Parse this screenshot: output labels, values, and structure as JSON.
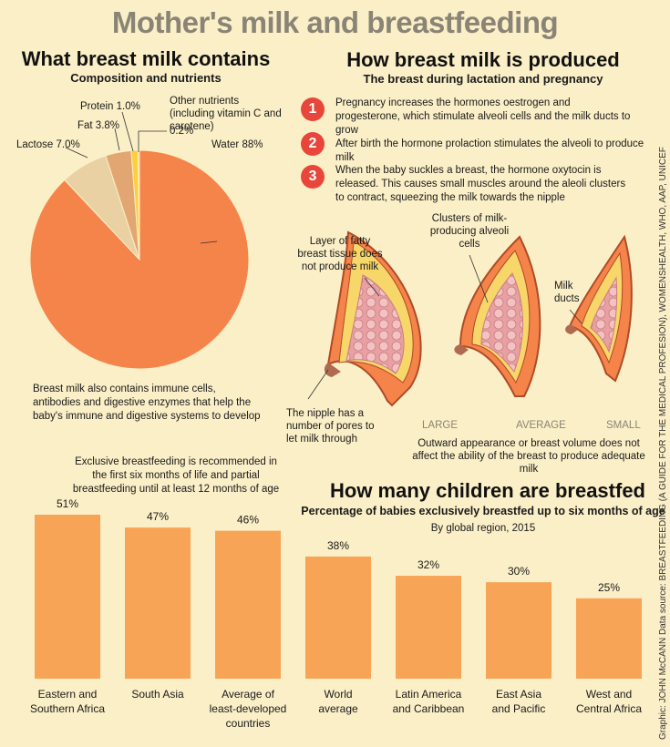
{
  "title": "Mother's milk and breastfeeding",
  "composition": {
    "title": "What breast milk contains",
    "subtitle": "Composition and nutrients",
    "note": "Breast milk also contains immune cells, antibodies and digestive enzymes that help the baby's immune and digestive systems to develop",
    "labels": {
      "water": "Water 88%",
      "lactose": "Lactose 7.0%",
      "fat": "Fat 3.8%",
      "protein": "Protein 1.0%",
      "other": "Other nutrients (including vitamin C and carotene)",
      "other_pct": "0.2%"
    }
  },
  "production": {
    "title": "How breast milk is produced",
    "subtitle": "The breast during lactation and pregnancy",
    "steps": [
      {
        "num": "1",
        "text": "Pregnancy increases the hormones oestrogen and progesterone, which stimulate alveoli cells and the milk ducts  to grow"
      },
      {
        "num": "2",
        "text": "After birth the hormone prolaction stimulates the alveoli to produce milk"
      },
      {
        "num": "3",
        "text": "When the baby suckles a breast, the hormone oxytocin is released. This causes small muscles around the aleoli clusters to contract, squeezing the milk towards the nipple"
      }
    ],
    "labels": {
      "fatty": "Layer of fatty breast tissue does not produce milk",
      "clusters": "Clusters of milk-producing alveoli cells",
      "ducts": "Milk ducts",
      "nipple": "The nipple has a number of pores to let milk through",
      "large": "LARGE",
      "average": "AVERAGE",
      "small": "SMALL",
      "volume_note": "Outward appearance or breast volume does not affect the ability of the breast to produce adequate milk"
    }
  },
  "breastfed": {
    "title": "How many children are breastfed",
    "subtitle": "Percentage of babies exclusively breastfed up to six months of age",
    "subtitle2": "By global region, 2015",
    "recommendation": "Exclusive breastfeeding is recommended in the first six months of life and partial breastfeeding until at least 12 months of age"
  },
  "credit": "Graphic: JOHN McCANN Data source: BREASTFEEDING (A GUIDE FOR THE MEDICAL PROFESION), WOMENSHEALTH, WHO, AAP, UNICEF",
  "colors": {
    "background": "#fbefc7",
    "water": "#f4844a",
    "lactose": "#ead1a3",
    "fat": "#e2a672",
    "protein": "#fdcf3d",
    "other": "#f5b97a",
    "bar": "#f8a456",
    "step": "#e8463a"
  },
  "chart_data": [
    {
      "type": "pie",
      "title": "What breast milk contains",
      "categories": [
        "Water",
        "Lactose",
        "Fat",
        "Protein",
        "Other nutrients (including vitamin C and carotene)"
      ],
      "values": [
        88,
        7.0,
        3.8,
        1.0,
        0.2
      ]
    },
    {
      "type": "bar",
      "title": "How many children are breastfed",
      "categories": [
        "Eastern and Southern Africa",
        "South Asia",
        "Average of least-developed countries",
        "World average",
        "Latin America and Caribbean",
        "East Asia and Pacific",
        "West and Central Africa"
      ],
      "values": [
        51,
        47,
        46,
        38,
        32,
        30,
        25
      ],
      "value_labels": [
        "51%",
        "47%",
        "46%",
        "38%",
        "32%",
        "30%",
        "25%"
      ],
      "ylim": [
        0,
        51
      ]
    }
  ]
}
